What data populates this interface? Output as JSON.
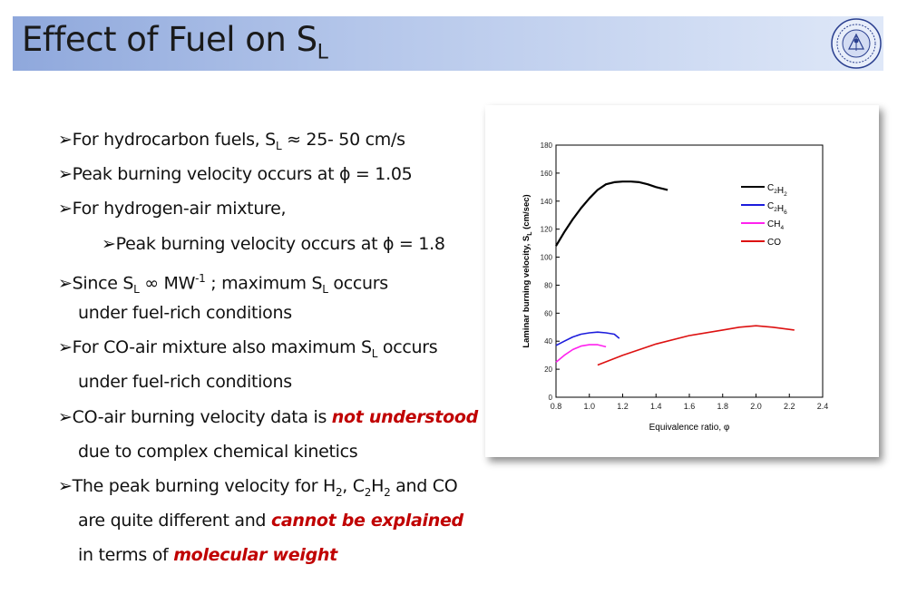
{
  "header": {
    "title_main": "Effect of Fuel on S",
    "title_sub": "L"
  },
  "bullets": {
    "b1": {
      "arrow": "➢",
      "t1": "For hydrocarbon fuels, S",
      "s1": "L",
      "t2": " ≈ 25- 50 cm/s"
    },
    "b2": {
      "arrow": "➢",
      "t1": "Peak burning velocity occurs at ϕ = 1.05"
    },
    "b3": {
      "arrow": "➢",
      "t1": "For hydrogen-air mixture,"
    },
    "b4": {
      "arrow": "➢",
      "t1": "Peak burning velocity occurs at ϕ = 1.8"
    },
    "b5": {
      "arrow": "➢",
      "t1": "Since S",
      "s1": "L",
      "t2": " ∞ MW",
      "sup1": "-1",
      "t3": " ; maximum S",
      "s2": "L",
      "t4": " occurs"
    },
    "b5c": {
      "t1": "under fuel-rich conditions"
    },
    "b6": {
      "arrow": "➢",
      "t1": "For CO-air mixture also maximum S",
      "s1": "L",
      "t2": " occurs"
    },
    "b6c": {
      "t1": "under fuel-rich conditions"
    },
    "b7": {
      "arrow": "➢",
      "t1": "CO-air burning velocity data is ",
      "r1": "not understood"
    },
    "b7c": {
      "t1": "due to complex chemical kinetics"
    },
    "b8": {
      "arrow": "➢",
      "t1": "The peak burning velocity for H",
      "s1": "2",
      "t2": ", C",
      "s2": "2",
      "t3": "H",
      "s3": "2",
      "t4": " and CO"
    },
    "b8c": {
      "t1": "are quite different and ",
      "r1": "cannot be explained"
    },
    "b8d": {
      "t1": "in terms of ",
      "r1": "molecular weight"
    }
  },
  "colors": {
    "emphasis": "#c00000",
    "c2h2": "#000000",
    "c2h6": "#1c1cdc",
    "ch4": "#ff22ee",
    "co": "#dd1111"
  },
  "chart_data": {
    "type": "line",
    "xlabel": "Equivalence ratio, φ",
    "ylabel_main": "Laminar burning velocity, S",
    "ylabel_sub": "L",
    "ylabel_unit": " (cm/sec)",
    "xlim": [
      0.8,
      2.4
    ],
    "ylim": [
      0,
      180
    ],
    "xticks": [
      0.8,
      1.0,
      1.2,
      1.4,
      1.6,
      1.8,
      2.0,
      2.2,
      2.4
    ],
    "xtick_labels": [
      "0.8",
      "1.0",
      "1.2",
      "1.4",
      "1.6",
      "1.8",
      "2.0",
      "2.2",
      "2.4"
    ],
    "yticks": [
      0,
      20,
      40,
      60,
      80,
      100,
      120,
      140,
      160,
      180
    ],
    "ytick_labels": [
      "0",
      "20",
      "40",
      "60",
      "80",
      "100",
      "120",
      "140",
      "160",
      "180"
    ],
    "legend_position": "top-right",
    "series": [
      {
        "name": "C2H2",
        "label_main": "C",
        "label_s1": "2",
        "label_mid": "H",
        "label_s2": "2",
        "color": "#000000",
        "x": [
          0.8,
          0.85,
          0.9,
          0.95,
          1.0,
          1.05,
          1.1,
          1.15,
          1.2,
          1.25,
          1.3,
          1.35,
          1.4,
          1.47
        ],
        "y": [
          108,
          118,
          127,
          135,
          142,
          148,
          152,
          153.5,
          154,
          154,
          153.5,
          152,
          150,
          148
        ]
      },
      {
        "name": "C2H6",
        "label_main": "C",
        "label_s1": "2",
        "label_mid": "H",
        "label_s2": "6",
        "color": "#1c1cdc",
        "x": [
          0.8,
          0.85,
          0.9,
          0.95,
          1.0,
          1.05,
          1.1,
          1.15,
          1.18
        ],
        "y": [
          37,
          40,
          43,
          45,
          46,
          46.5,
          46,
          45,
          42
        ]
      },
      {
        "name": "CH4",
        "label_main": "CH",
        "label_s1": "4",
        "label_mid": "",
        "label_s2": "",
        "color": "#ff22ee",
        "x": [
          0.8,
          0.85,
          0.9,
          0.95,
          1.0,
          1.05,
          1.1
        ],
        "y": [
          25,
          30,
          34,
          36.5,
          37.5,
          37.5,
          36
        ]
      },
      {
        "name": "CO",
        "label_main": "CO",
        "label_s1": "",
        "label_mid": "",
        "label_s2": "",
        "color": "#dd1111",
        "x": [
          1.05,
          1.2,
          1.4,
          1.6,
          1.8,
          1.9,
          2.0,
          2.1,
          2.23
        ],
        "y": [
          23,
          30,
          38,
          44,
          48,
          50,
          51,
          50,
          48
        ]
      }
    ]
  }
}
